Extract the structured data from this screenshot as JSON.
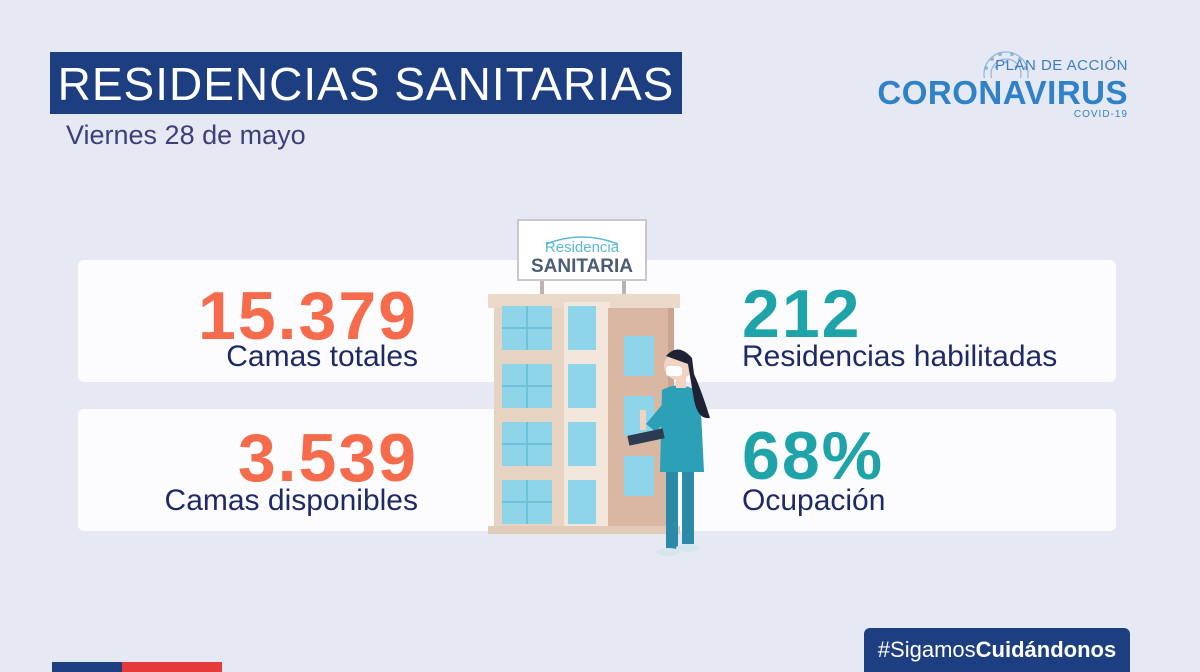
{
  "header": {
    "title": "RESIDENCIAS SANITARIAS",
    "date": "Viernes 28 de mayo"
  },
  "logo": {
    "line1": "PLAN DE ACCIÓN",
    "line2": "CORONAVIRUS",
    "line3": "COVID-19"
  },
  "sign": {
    "line1": "Residencia",
    "line2": "SANITARIA"
  },
  "stats": {
    "camas_totales": {
      "value": "15.379",
      "label": "Camas totales"
    },
    "camas_disponibles": {
      "value": "3.539",
      "label": "Camas disponibles"
    },
    "residencias": {
      "value": "212",
      "label": "Residencias habilitadas"
    },
    "ocupacion": {
      "value": "68%",
      "label": "Ocupación"
    }
  },
  "footer": {
    "hashtag_prefix": "#Sigamos",
    "hashtag_bold": "Cuidándonos"
  },
  "colors": {
    "title_bg": "#1d3f82",
    "orange": "#f56b4b",
    "teal": "#1da3a8",
    "navy_text": "#1f2a64",
    "background": "#e6e8f4"
  },
  "icons": [
    "building-illustration",
    "nurse-illustration",
    "coronavirus-emblem-icon"
  ]
}
